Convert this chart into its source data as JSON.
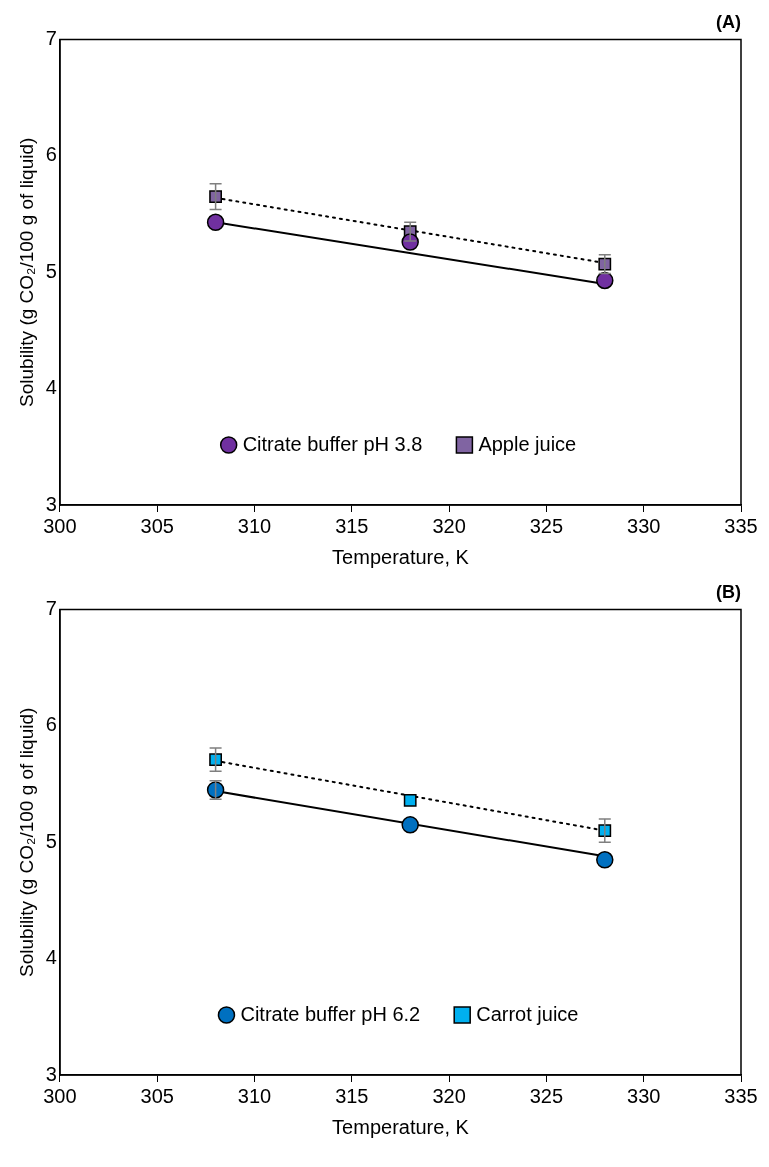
{
  "chart_data": [
    {
      "type": "scatter",
      "title": "(A)",
      "xlabel": "Temperature, K",
      "ylabel": "Solubility (g CO₂/100 g of liquid)",
      "x": [
        308,
        318,
        328
      ],
      "xlim": [
        300,
        335
      ],
      "xticks": [
        300,
        305,
        310,
        315,
        320,
        325,
        330,
        335
      ],
      "ylim": [
        3,
        7
      ],
      "yticks": [
        3,
        4,
        5,
        6,
        7
      ],
      "grid": false,
      "legend": "bottom",
      "series": [
        {
          "name": "Citrate buffer pH 3.8",
          "color": "#7030a0",
          "marker": "circle",
          "values": [
            5.43,
            5.26,
            4.93
          ]
        },
        {
          "name": "Apple juice",
          "color": "#8064a2",
          "marker": "square",
          "values": [
            5.65,
            5.35,
            5.07
          ],
          "errors": [
            0.11,
            0.08,
            0.08
          ]
        },
        {
          "type": "line",
          "values": [
            5.43,
            null,
            4.9
          ],
          "color": "#000000",
          "line_style": "solid"
        },
        {
          "type": "line",
          "values": [
            5.64,
            null,
            5.08
          ],
          "color": "#000000",
          "line_style": "dotted"
        }
      ]
    },
    {
      "type": "scatter",
      "title": "(B)",
      "xlabel": "Temperature, K",
      "ylabel": "Solubility (g CO₂/100 g of liquid)",
      "x": [
        308,
        318,
        328
      ],
      "xlim": [
        300,
        335
      ],
      "xticks": [
        300,
        305,
        310,
        315,
        320,
        325,
        330,
        335
      ],
      "ylim": [
        3,
        7
      ],
      "yticks": [
        3,
        4,
        5,
        6,
        7
      ],
      "grid": false,
      "legend": "bottom",
      "series": [
        {
          "name": "Citrate buffer pH 6.2",
          "color": "#0070c0",
          "marker": "circle",
          "values": [
            5.45,
            5.15,
            4.85
          ],
          "errors": [
            0.08,
            null,
            null
          ]
        },
        {
          "name": "Carrot juice",
          "color": "#00b0f0",
          "marker": "square",
          "values": [
            5.71,
            5.36,
            5.1
          ],
          "errors": [
            0.1,
            null,
            0.1
          ]
        },
        {
          "type": "line",
          "values": [
            5.44,
            null,
            4.88
          ],
          "color": "#000000",
          "line_style": "solid"
        },
        {
          "type": "line",
          "values": [
            5.7,
            null,
            5.1
          ],
          "color": "#000000",
          "line_style": "dotted"
        }
      ]
    }
  ]
}
